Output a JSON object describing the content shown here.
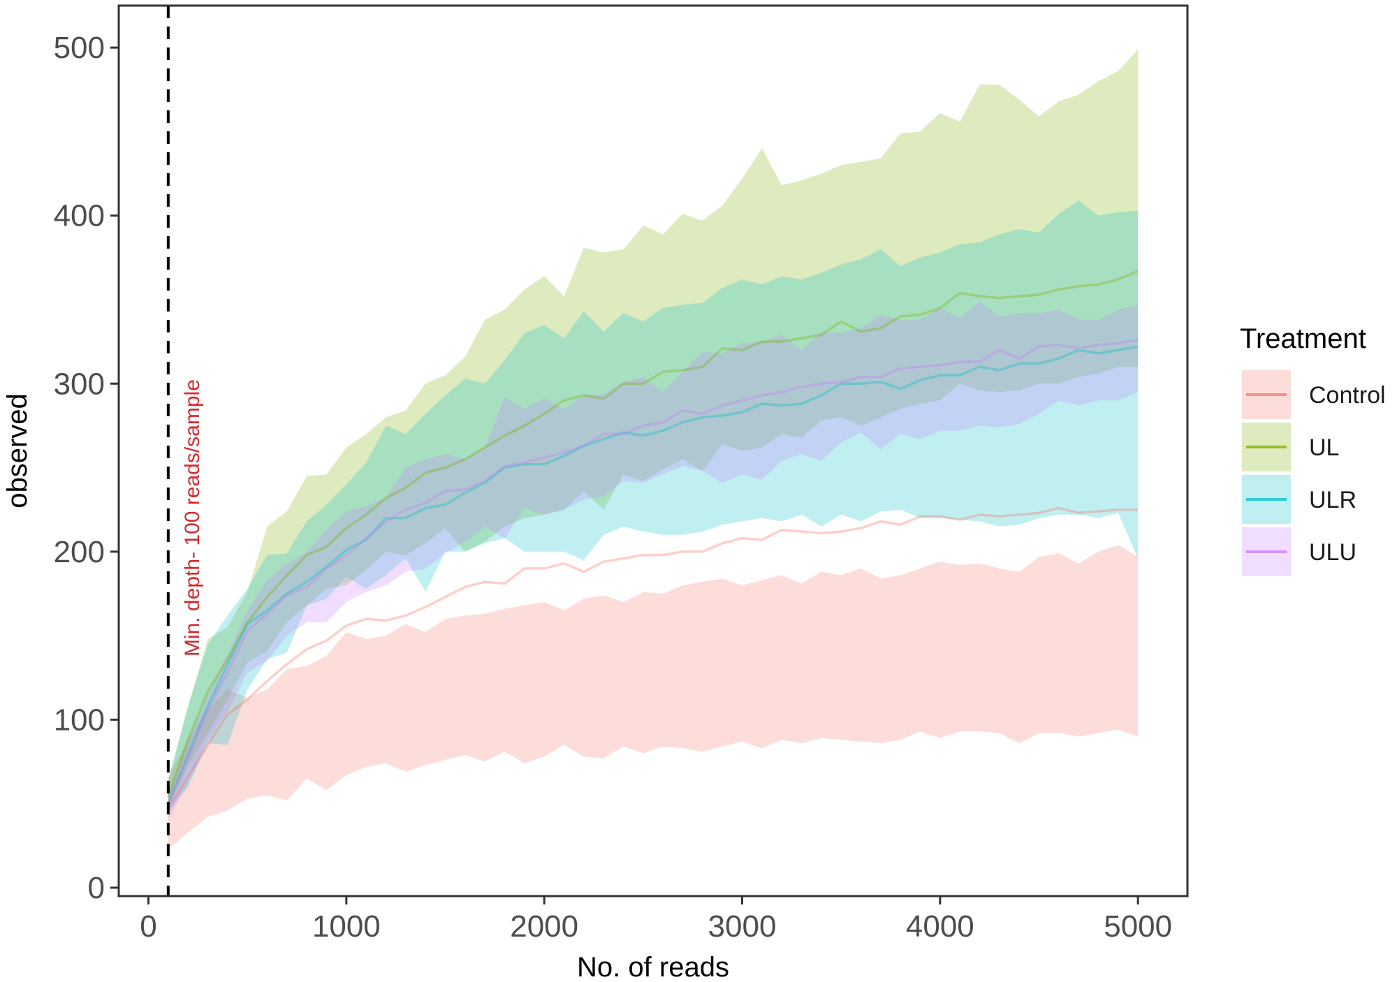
{
  "chart_data": {
    "type": "area",
    "xlabel": "No. of reads",
    "ylabel": "observed",
    "xlim": [
      -150,
      5250
    ],
    "ylim": [
      -5,
      525
    ],
    "xticks": [
      0,
      1000,
      2000,
      3000,
      4000,
      5000
    ],
    "yticks": [
      0,
      100,
      200,
      300,
      400,
      500
    ],
    "grid": false,
    "legend": {
      "title": "Treatment",
      "position": "right"
    },
    "annotation": {
      "text": "Min. depth- 100 reads/sample",
      "x": 100
    },
    "x": [
      100,
      200,
      300,
      400,
      500,
      600,
      700,
      800,
      900,
      1000,
      1100,
      1200,
      1300,
      1400,
      1500,
      1600,
      1700,
      1800,
      1900,
      2000,
      2100,
      2200,
      2300,
      2400,
      2500,
      2600,
      2700,
      2800,
      2900,
      3000,
      3100,
      3200,
      3300,
      3400,
      3500,
      3600,
      3700,
      3800,
      3900,
      4000,
      4100,
      4200,
      4300,
      4400,
      4500,
      4600,
      4700,
      4800,
      4900,
      5000
    ],
    "series": [
      {
        "name": "Control",
        "color": "#F8766D",
        "mean": [
          47,
          66,
          85,
          103,
          112,
          123,
          133,
          142,
          147,
          156,
          160,
          159,
          162,
          167,
          173,
          179,
          182,
          181,
          190,
          190,
          193,
          188,
          194,
          196,
          198,
          198,
          200,
          200,
          205,
          208,
          207,
          213,
          212,
          211,
          212,
          214,
          218,
          216,
          221,
          221,
          219,
          222,
          221,
          222,
          223,
          226,
          223,
          224,
          225,
          225
        ],
        "lower": [
          23,
          33,
          42,
          46,
          53,
          55,
          52,
          65,
          58,
          67,
          72,
          74,
          69,
          73,
          76,
          79,
          75,
          81,
          74,
          78,
          85,
          78,
          77,
          84,
          80,
          84,
          83,
          81,
          84,
          87,
          83,
          88,
          86,
          89,
          88,
          87,
          86,
          88,
          93,
          89,
          93,
          93,
          92,
          86,
          92,
          92,
          90,
          92,
          94,
          90
        ],
        "upper": [
          66,
          88,
          106,
          118,
          113,
          118,
          130,
          132,
          138,
          152,
          148,
          150,
          157,
          152,
          160,
          162,
          163,
          166,
          168,
          170,
          165,
          172,
          174,
          170,
          176,
          175,
          180,
          182,
          184,
          180,
          183,
          186,
          181,
          188,
          186,
          190,
          184,
          186,
          190,
          194,
          192,
          193,
          190,
          188,
          197,
          199,
          193,
          200,
          204,
          197
        ]
      },
      {
        "name": "UL",
        "color": "#7CAE00",
        "mean": [
          54,
          88,
          117,
          136,
          158,
          173,
          186,
          198,
          203,
          214,
          222,
          232,
          238,
          247,
          250,
          255,
          262,
          269,
          275,
          282,
          290,
          293,
          291,
          300,
          300,
          307,
          308,
          310,
          321,
          320,
          325,
          325,
          327,
          329,
          337,
          331,
          333,
          340,
          341,
          345,
          354,
          352,
          351,
          352,
          353,
          356,
          358,
          359,
          362,
          367
        ],
        "lower": [
          47,
          73,
          92,
          112,
          134,
          141,
          158,
          168,
          178,
          180,
          189,
          200,
          198,
          205,
          214,
          200,
          206,
          215,
          220,
          222,
          225,
          236,
          225,
          246,
          242,
          249,
          255,
          248,
          264,
          260,
          262,
          270,
          268,
          278,
          280,
          275,
          280,
          285,
          288,
          290,
          300,
          296,
          295,
          296,
          300,
          300,
          304,
          306,
          310,
          310
        ],
        "upper": [
          63,
          108,
          148,
          155,
          176,
          215,
          224,
          245,
          246,
          262,
          270,
          280,
          284,
          300,
          305,
          316,
          338,
          344,
          356,
          364,
          352,
          381,
          378,
          380,
          394,
          389,
          401,
          397,
          406,
          422,
          440,
          418,
          421,
          425,
          430,
          432,
          434,
          449,
          450,
          461,
          456,
          478,
          478,
          469,
          459,
          468,
          472,
          480,
          486,
          499
        ]
      },
      {
        "name": "ULR",
        "color": "#00BFC4",
        "mean": [
          50,
          79,
          108,
          133,
          157,
          165,
          175,
          182,
          191,
          201,
          207,
          220,
          220,
          226,
          228,
          235,
          241,
          250,
          252,
          252,
          257,
          263,
          267,
          271,
          269,
          272,
          277,
          280,
          281,
          283,
          288,
          287,
          288,
          293,
          300,
          300,
          301,
          297,
          302,
          305,
          305,
          310,
          308,
          312,
          312,
          315,
          320,
          318,
          320,
          322
        ],
        "lower": [
          45,
          60,
          86,
          85,
          118,
          136,
          140,
          168,
          172,
          185,
          178,
          186,
          196,
          176,
          200,
          200,
          205,
          208,
          200,
          200,
          200,
          195,
          210,
          215,
          212,
          210,
          210,
          212,
          216,
          218,
          220,
          218,
          222,
          215,
          222,
          218,
          224,
          225,
          220,
          220,
          219,
          218,
          215,
          216,
          220,
          222,
          222,
          220,
          223,
          196
        ],
        "upper": [
          64,
          108,
          145,
          162,
          178,
          198,
          199,
          218,
          228,
          240,
          253,
          275,
          270,
          282,
          293,
          303,
          300,
          314,
          330,
          335,
          327,
          343,
          331,
          342,
          337,
          345,
          347,
          348,
          357,
          362,
          359,
          364,
          362,
          366,
          371,
          374,
          380,
          370,
          375,
          378,
          383,
          384,
          389,
          392,
          390,
          401,
          409,
          400,
          402,
          403
        ]
      },
      {
        "name": "ULU",
        "color": "#C77CFF",
        "mean": [
          50,
          77,
          106,
          128,
          153,
          163,
          174,
          179,
          190,
          198,
          208,
          218,
          225,
          229,
          236,
          237,
          242,
          251,
          253,
          256,
          259,
          263,
          270,
          270,
          275,
          277,
          284,
          282,
          287,
          290,
          293,
          295,
          298,
          300,
          301,
          304,
          304,
          309,
          310,
          311,
          313,
          313,
          320,
          315,
          322,
          323,
          321,
          323,
          324,
          326
        ],
        "lower": [
          40,
          63,
          88,
          105,
          128,
          135,
          150,
          158,
          158,
          170,
          176,
          180,
          188,
          190,
          199,
          206,
          215,
          208,
          226,
          222,
          225,
          231,
          233,
          242,
          241,
          246,
          251,
          248,
          241,
          246,
          243,
          254,
          258,
          254,
          265,
          271,
          261,
          270,
          267,
          272,
          272,
          275,
          274,
          276,
          282,
          290,
          287,
          290,
          290,
          295
        ],
        "upper": [
          55,
          88,
          115,
          139,
          165,
          183,
          193,
          200,
          213,
          224,
          227,
          232,
          250,
          255,
          258,
          255,
          262,
          292,
          285,
          291,
          285,
          293,
          294,
          301,
          304,
          295,
          307,
          319,
          318,
          324,
          325,
          329,
          320,
          331,
          330,
          333,
          341,
          338,
          338,
          345,
          339,
          349,
          340,
          342,
          342,
          344,
          338,
          338,
          344,
          347
        ]
      }
    ]
  }
}
